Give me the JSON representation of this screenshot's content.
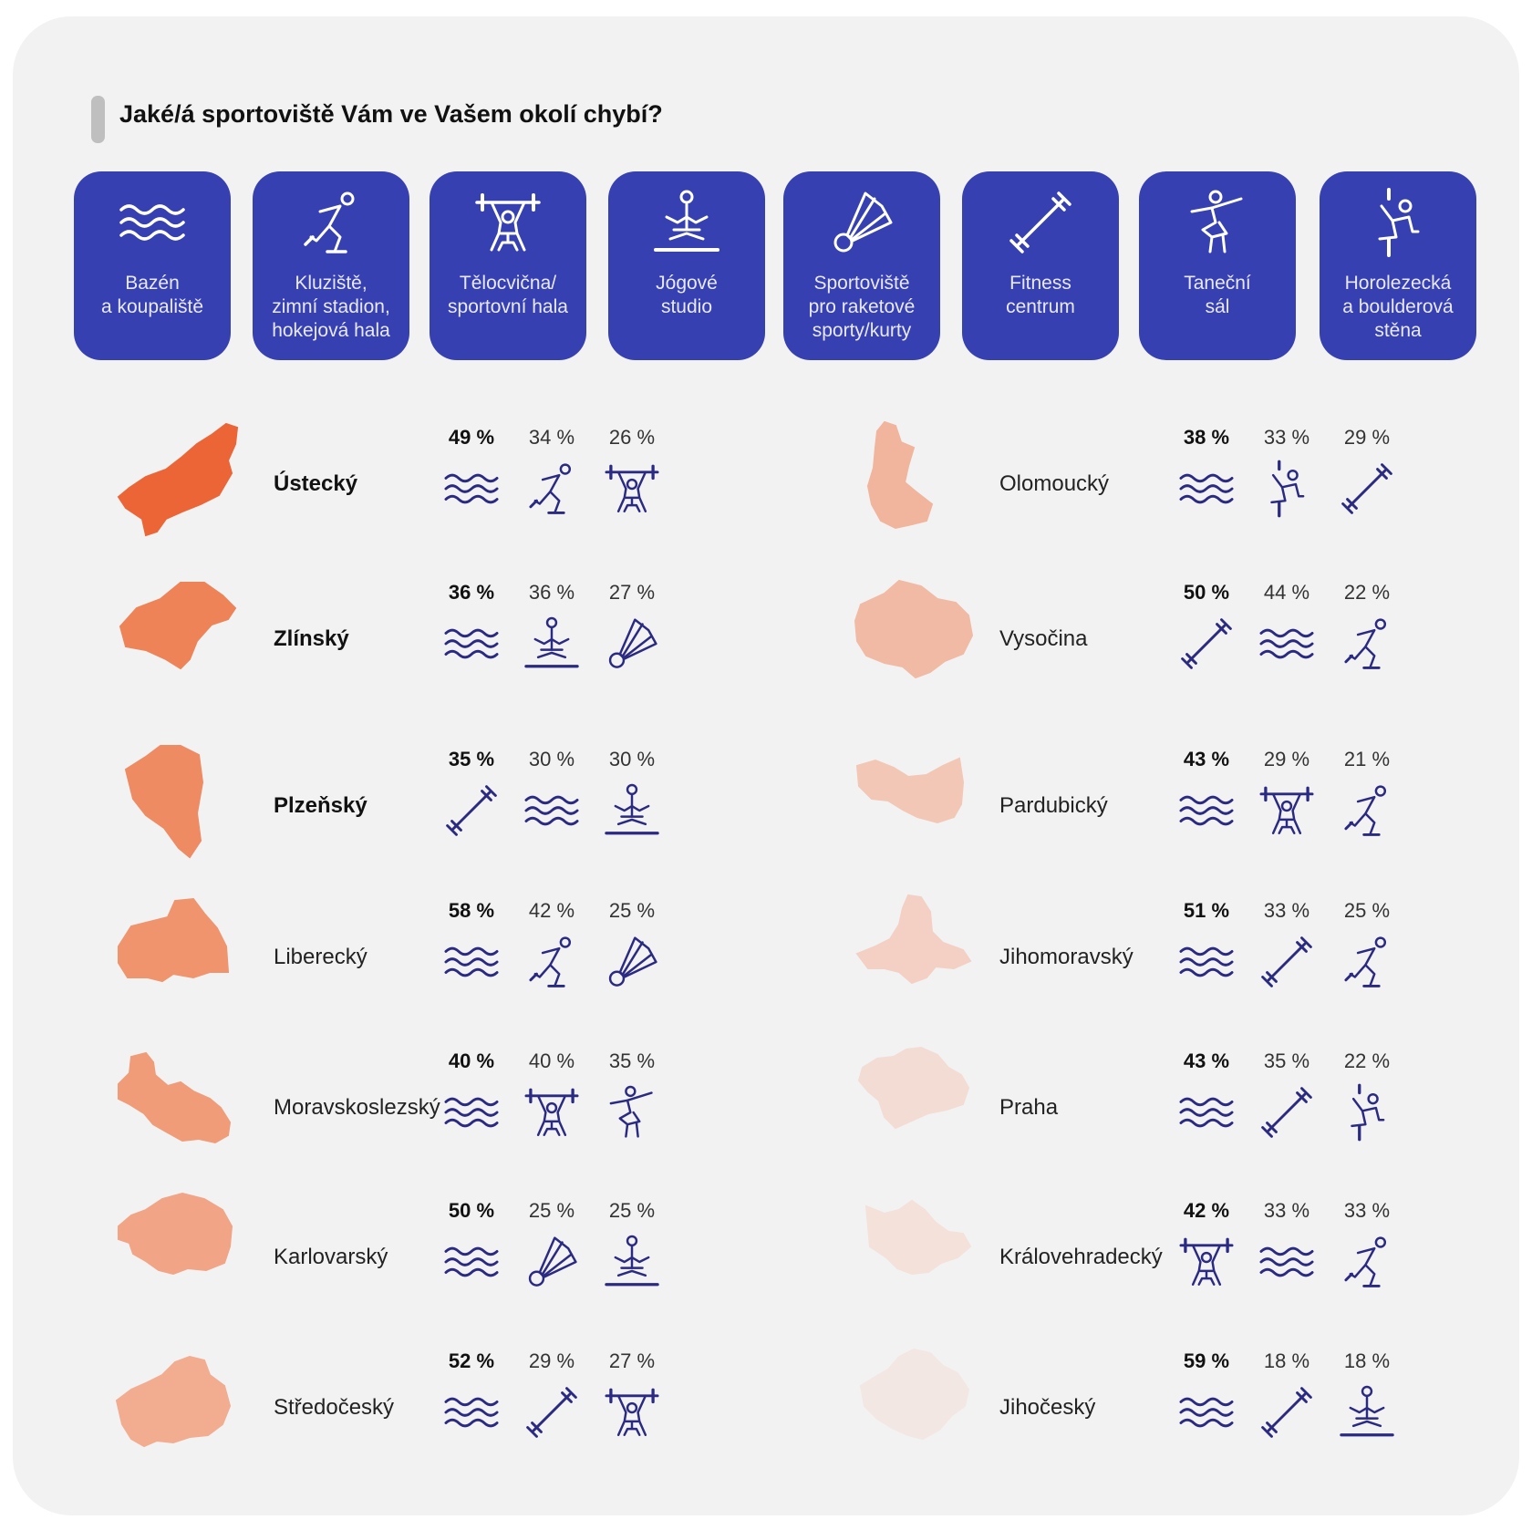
{
  "title": "Jaké/á sportoviště Vám ve Vašem okolí chybí?",
  "colors": {
    "tile": "#3640b0",
    "icon": "#2b2a82"
  },
  "facilities": [
    {
      "id": "bazen",
      "icon": "waves-icon",
      "label": "Bazén\na koupaliště"
    },
    {
      "id": "kluziste",
      "icon": "skater-icon",
      "label": "Kluziště,\nzimní stadion,\nhokejová hala"
    },
    {
      "id": "telocvicna",
      "icon": "weightlifter-icon",
      "label": "Tělocvična/\nsportovní hala"
    },
    {
      "id": "joga",
      "icon": "yoga-icon",
      "label": "Jógové\nstudio"
    },
    {
      "id": "raketove",
      "icon": "shuttlecock-icon",
      "label": "Sportoviště\npro raketové\nsporty/kurty"
    },
    {
      "id": "fitness",
      "icon": "dumbbell-icon",
      "label": "Fitness\ncentrum"
    },
    {
      "id": "tanecni",
      "icon": "dancer-icon",
      "label": "Taneční\nsál"
    },
    {
      "id": "horolezecka",
      "icon": "climber-icon",
      "label": "Horolezecká\na boulderová\nstěna"
    }
  ],
  "chart_data": {
    "type": "table",
    "title": "Jaké/á sportoviště Vám ve Vašem okolí chybí?",
    "unit": "%",
    "regions": [
      {
        "name": "Ústecký",
        "bold": true,
        "color": "#ec6537",
        "top": [
          {
            "f": "bazen",
            "v": 49,
            "label": "49 %"
          },
          {
            "f": "kluziste",
            "v": 34,
            "label": "34 %"
          },
          {
            "f": "telocvicna",
            "v": 26,
            "label": "26 %"
          }
        ]
      },
      {
        "name": "Zlínský",
        "bold": true,
        "color": "#ee8358",
        "top": [
          {
            "f": "bazen",
            "v": 36,
            "label": "36 %"
          },
          {
            "f": "joga",
            "v": 36,
            "label": "36 %"
          },
          {
            "f": "raketove",
            "v": 27,
            "label": "27 %"
          }
        ]
      },
      {
        "name": "Plzeňský",
        "bold": true,
        "color": "#ef8b63",
        "top": [
          {
            "f": "fitness",
            "v": 35,
            "label": "35 %"
          },
          {
            "f": "bazen",
            "v": 30,
            "label": "30 %"
          },
          {
            "f": "joga",
            "v": 30,
            "label": "30 %"
          }
        ]
      },
      {
        "name": "Liberecký",
        "bold": false,
        "color": "#f0946e",
        "top": [
          {
            "f": "bazen",
            "v": 58,
            "label": "58 %"
          },
          {
            "f": "kluziste",
            "v": 42,
            "label": "42 %"
          },
          {
            "f": "raketove",
            "v": 25,
            "label": "25 %"
          }
        ]
      },
      {
        "name": "Moravskoslezský",
        "bold": false,
        "color": "#f09c79",
        "top": [
          {
            "f": "bazen",
            "v": 40,
            "label": "40 %"
          },
          {
            "f": "telocvicna",
            "v": 40,
            "label": "40 %"
          },
          {
            "f": "tanecni",
            "v": 35,
            "label": "35 %"
          }
        ]
      },
      {
        "name": "Karlovarský",
        "bold": false,
        "color": "#f1a486",
        "top": [
          {
            "f": "bazen",
            "v": 50,
            "label": "50 %"
          },
          {
            "f": "raketove",
            "v": 25,
            "label": "25 %"
          },
          {
            "f": "joga",
            "v": 25,
            "label": "25 %"
          }
        ]
      },
      {
        "name": "Středočeský",
        "bold": false,
        "color": "#f2ac90",
        "top": [
          {
            "f": "bazen",
            "v": 52,
            "label": "52 %"
          },
          {
            "f": "fitness",
            "v": 29,
            "label": "29 %"
          },
          {
            "f": "telocvicna",
            "v": 27,
            "label": "27 %"
          }
        ]
      },
      {
        "name": "Olomoucký",
        "bold": false,
        "color": "#f1b49c",
        "top": [
          {
            "f": "bazen",
            "v": 38,
            "label": "38 %"
          },
          {
            "f": "horolezecka",
            "v": 33,
            "label": "33 %"
          },
          {
            "f": "fitness",
            "v": 29,
            "label": "29 %"
          }
        ]
      },
      {
        "name": "Vysočina",
        "bold": false,
        "color": "#f1baa4",
        "top": [
          {
            "f": "fitness",
            "v": 50,
            "label": "50 %"
          },
          {
            "f": "bazen",
            "v": 44,
            "label": "44 %"
          },
          {
            "f": "kluziste",
            "v": 22,
            "label": "22 %"
          }
        ]
      },
      {
        "name": "Pardubický",
        "bold": false,
        "color": "#f2c7b6",
        "top": [
          {
            "f": "bazen",
            "v": 43,
            "label": "43 %"
          },
          {
            "f": "telocvicna",
            "v": 29,
            "label": "29 %"
          },
          {
            "f": "kluziste",
            "v": 21,
            "label": "21 %"
          }
        ]
      },
      {
        "name": "Jihomoravský",
        "bold": false,
        "color": "#f3d0c3",
        "top": [
          {
            "f": "bazen",
            "v": 51,
            "label": "51 %"
          },
          {
            "f": "fitness",
            "v": 33,
            "label": "33 %"
          },
          {
            "f": "kluziste",
            "v": 25,
            "label": "25 %"
          }
        ]
      },
      {
        "name": "Praha",
        "bold": false,
        "color": "#f3dcd3",
        "top": [
          {
            "f": "bazen",
            "v": 43,
            "label": "43 %"
          },
          {
            "f": "fitness",
            "v": 35,
            "label": "35 %"
          },
          {
            "f": "horolezecka",
            "v": 22,
            "label": "22 %"
          }
        ]
      },
      {
        "name": "Královehradecký",
        "bold": false,
        "color": "#f3e1da",
        "top": [
          {
            "f": "telocvicna",
            "v": 42,
            "label": "42 %"
          },
          {
            "f": "bazen",
            "v": 33,
            "label": "33 %"
          },
          {
            "f": "kluziste",
            "v": 33,
            "label": "33 %"
          }
        ]
      },
      {
        "name": "Jihočeský",
        "bold": false,
        "color": "#f2e7e2",
        "top": [
          {
            "f": "bazen",
            "v": 59,
            "label": "59 %"
          },
          {
            "f": "fitness",
            "v": 18,
            "label": "18 %"
          },
          {
            "f": "joga",
            "v": 18,
            "label": "18 %"
          }
        ]
      }
    ]
  }
}
